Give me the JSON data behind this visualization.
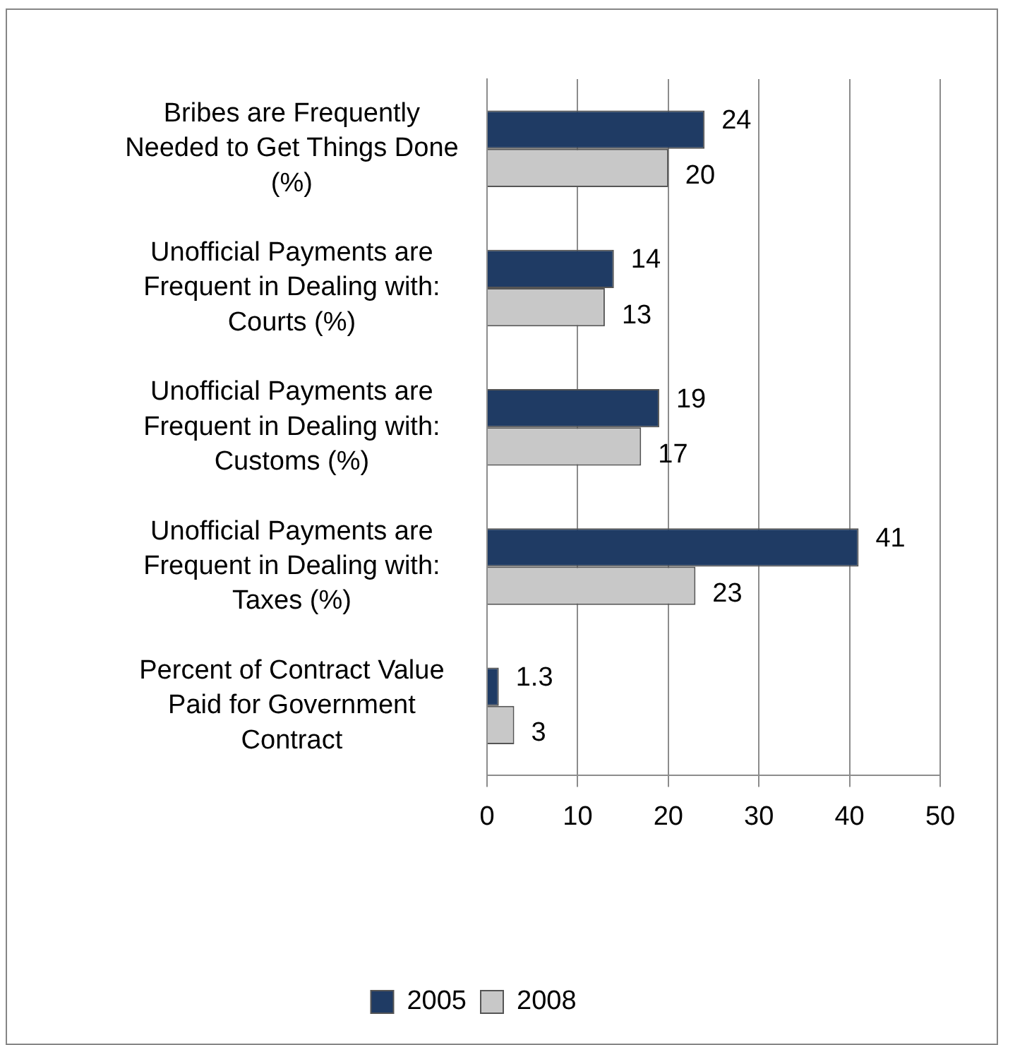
{
  "chart_data": {
    "type": "bar",
    "orientation": "horizontal",
    "categories": [
      "Bribes are Frequently Needed to Get Things Done (%)",
      "Unofficial Payments are Frequent in Dealing with: Courts (%)",
      "Unofficial Payments are Frequent in Dealing with: Customs (%)",
      "Unofficial Payments are Frequent in Dealing with: Taxes (%)",
      "Percent of Contract Value Paid for Government Contract"
    ],
    "series": [
      {
        "name": "2005",
        "color": "#1f3b64",
        "values": [
          24,
          14,
          19,
          41,
          1.3
        ]
      },
      {
        "name": "2008",
        "color": "#c8c8c8",
        "values": [
          20,
          13,
          17,
          23,
          3
        ]
      }
    ],
    "xlim": [
      0,
      50
    ],
    "xticks": [
      0,
      10,
      20,
      30,
      40,
      50
    ],
    "grid": "x",
    "legend": "bottom",
    "data_labels": true
  }
}
